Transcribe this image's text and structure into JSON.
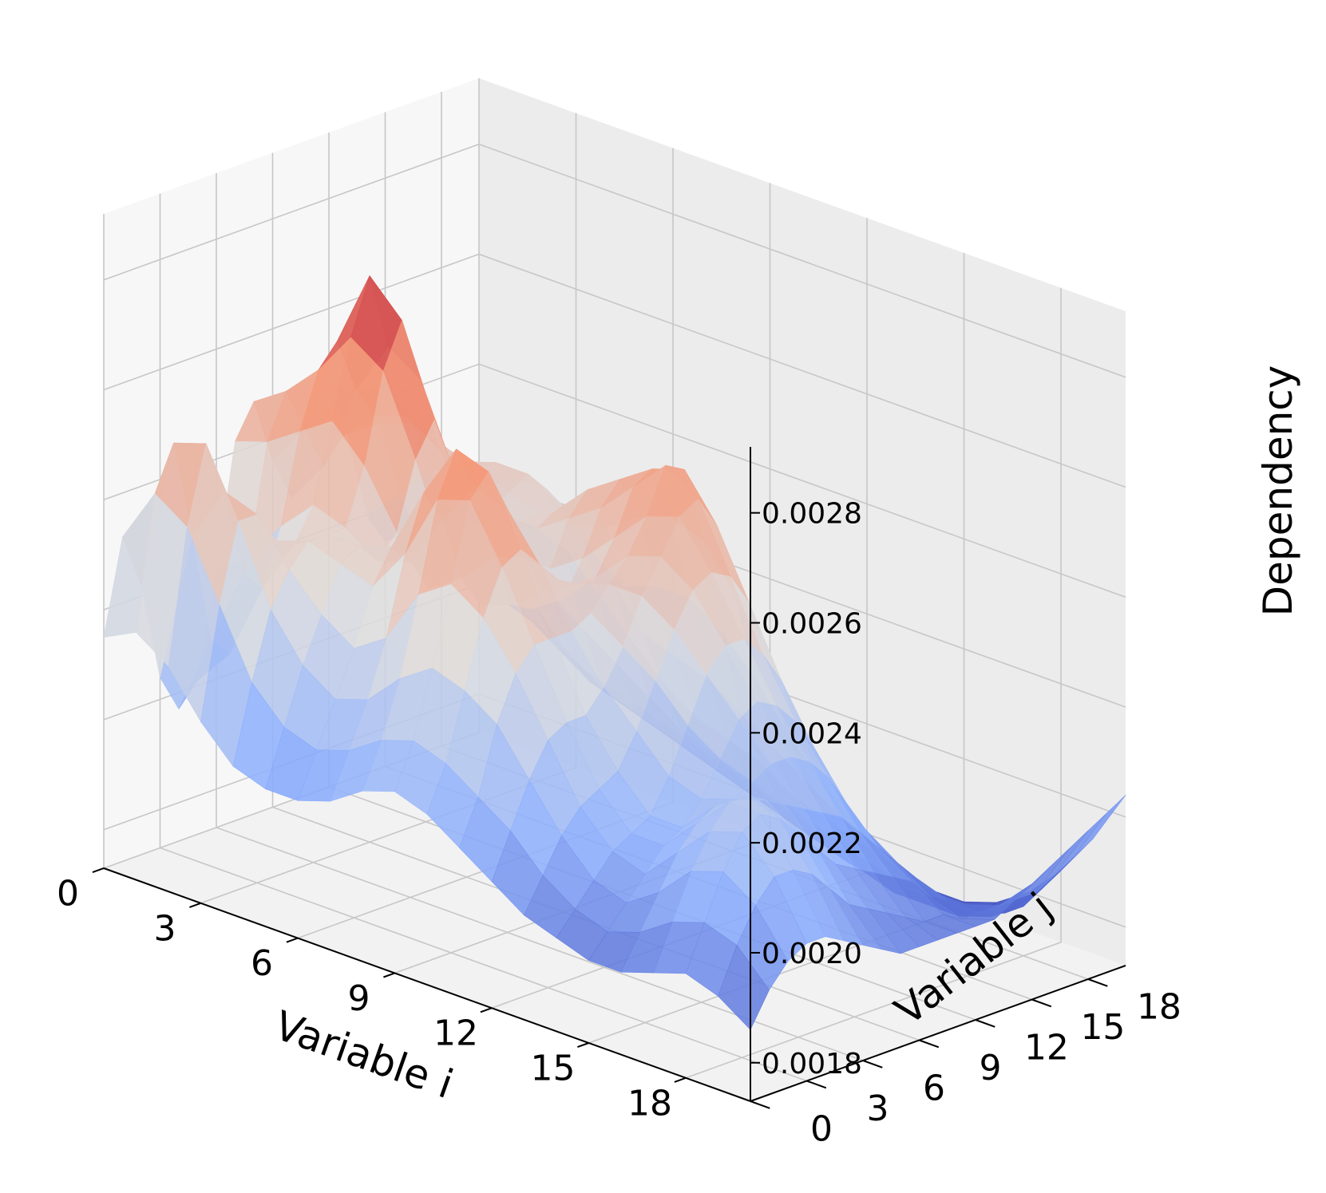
{
  "chart_data": {
    "type": "surface3d",
    "title": "",
    "xlabel": "Variable i",
    "ylabel": "Variable j",
    "zlabel": "Dependency",
    "x_ticks": [
      "0",
      "3",
      "6",
      "9",
      "12",
      "15",
      "18"
    ],
    "y_ticks": [
      "0",
      "3",
      "6",
      "9",
      "12",
      "15",
      "18"
    ],
    "z_ticks": [
      "0.0018",
      "0.0020",
      "0.0022",
      "0.0024",
      "0.0026",
      "0.0028"
    ],
    "xlim": [
      0,
      20
    ],
    "ylim": [
      0,
      20
    ],
    "zlim": [
      0.00173,
      0.00292
    ],
    "colormap": "coolwarm",
    "z_grid": [
      [
        0.00215,
        0.00232,
        0.00222,
        0.00204,
        0.00197,
        0.00201,
        0.0022,
        0.00242,
        0.00248,
        0.00236,
        0.00228,
        0.00234,
        0.00246,
        0.00236,
        0.0022,
        0.00214,
        0.00221,
        0.00225,
        0.00216,
        0.00206,
        0.002
      ],
      [
        0.00218,
        0.00242,
        0.0025,
        0.00232,
        0.00212,
        0.00208,
        0.00224,
        0.00244,
        0.00252,
        0.00244,
        0.00236,
        0.0024,
        0.00248,
        0.0024,
        0.00226,
        0.00218,
        0.00222,
        0.00224,
        0.00214,
        0.00204,
        0.00198
      ],
      [
        0.00214,
        0.00238,
        0.00252,
        0.00242,
        0.00226,
        0.00222,
        0.00232,
        0.00248,
        0.00258,
        0.00262,
        0.00252,
        0.00246,
        0.00248,
        0.00242,
        0.00232,
        0.00224,
        0.00223,
        0.0022,
        0.0021,
        0.002,
        0.00196
      ],
      [
        0.00206,
        0.00226,
        0.0024,
        0.0024,
        0.00234,
        0.00232,
        0.00238,
        0.00252,
        0.00266,
        0.00276,
        0.00262,
        0.00248,
        0.00244,
        0.0024,
        0.00236,
        0.0023,
        0.00224,
        0.00214,
        0.00204,
        0.00196,
        0.00192
      ],
      [
        0.002,
        0.00214,
        0.00226,
        0.00232,
        0.00236,
        0.00236,
        0.00236,
        0.00246,
        0.00262,
        0.0027,
        0.00258,
        0.00244,
        0.00238,
        0.00238,
        0.00238,
        0.00234,
        0.00224,
        0.0021,
        0.00198,
        0.00192,
        0.0019
      ],
      [
        0.00198,
        0.00208,
        0.00218,
        0.00226,
        0.00234,
        0.00236,
        0.00232,
        0.00236,
        0.00248,
        0.00254,
        0.00244,
        0.00236,
        0.00234,
        0.00236,
        0.00238,
        0.00234,
        0.00222,
        0.00206,
        0.00194,
        0.0019,
        0.00188
      ],
      [
        0.00198,
        0.00206,
        0.00214,
        0.00222,
        0.00232,
        0.00238,
        0.00234,
        0.00228,
        0.00232,
        0.00238,
        0.00236,
        0.00234,
        0.00234,
        0.00234,
        0.00234,
        0.0023,
        0.00216,
        0.00202,
        0.00192,
        0.00188,
        0.00186
      ],
      [
        0.002,
        0.00208,
        0.00216,
        0.00226,
        0.0024,
        0.0025,
        0.00244,
        0.00232,
        0.00226,
        0.00228,
        0.00232,
        0.00236,
        0.00238,
        0.00234,
        0.00228,
        0.00222,
        0.0021,
        0.00198,
        0.0019,
        0.00186,
        0.00184
      ],
      [
        0.00204,
        0.00212,
        0.00222,
        0.00236,
        0.00252,
        0.0026,
        0.00252,
        0.00238,
        0.00228,
        0.00226,
        0.00232,
        0.0024,
        0.00244,
        0.00236,
        0.00224,
        0.00214,
        0.00204,
        0.00194,
        0.00188,
        0.00184,
        0.00182
      ],
      [
        0.00206,
        0.00214,
        0.00226,
        0.0024,
        0.00254,
        0.00258,
        0.0025,
        0.0024,
        0.00232,
        0.0023,
        0.00236,
        0.00244,
        0.00248,
        0.0024,
        0.00226,
        0.00212,
        0.002,
        0.00192,
        0.00186,
        0.00182,
        0.0018
      ],
      [
        0.00204,
        0.00212,
        0.00224,
        0.00236,
        0.00244,
        0.00246,
        0.00242,
        0.00238,
        0.00236,
        0.00236,
        0.00242,
        0.0025,
        0.00252,
        0.00242,
        0.00226,
        0.0021,
        0.00198,
        0.0019,
        0.00184,
        0.0018,
        0.00178
      ],
      [
        0.002,
        0.00208,
        0.0022,
        0.00228,
        0.00232,
        0.00232,
        0.00232,
        0.00234,
        0.00238,
        0.00242,
        0.00248,
        0.00256,
        0.00254,
        0.0024,
        0.00222,
        0.00206,
        0.00196,
        0.00188,
        0.00182,
        0.00178,
        0.00176
      ],
      [
        0.00196,
        0.00204,
        0.00212,
        0.00218,
        0.0022,
        0.0022,
        0.00224,
        0.0023,
        0.00238,
        0.00244,
        0.0025,
        0.00252,
        0.00246,
        0.00232,
        0.00216,
        0.00202,
        0.00192,
        0.00186,
        0.0018,
        0.00176,
        0.00175
      ],
      [
        0.00192,
        0.00198,
        0.00204,
        0.00208,
        0.0021,
        0.00212,
        0.00218,
        0.00226,
        0.00234,
        0.0024,
        0.00242,
        0.0024,
        0.00234,
        0.00222,
        0.00208,
        0.00198,
        0.0019,
        0.00184,
        0.00178,
        0.00175,
        0.00174
      ],
      [
        0.0019,
        0.00194,
        0.00198,
        0.00202,
        0.00204,
        0.00206,
        0.00212,
        0.0022,
        0.00228,
        0.00232,
        0.00232,
        0.00228,
        0.00222,
        0.00212,
        0.00202,
        0.00194,
        0.00188,
        0.00182,
        0.00176,
        0.00174,
        0.00174
      ],
      [
        0.00188,
        0.00192,
        0.00196,
        0.002,
        0.00204,
        0.00206,
        0.0021,
        0.00216,
        0.00222,
        0.00224,
        0.00222,
        0.00218,
        0.00212,
        0.00204,
        0.00196,
        0.0019,
        0.00186,
        0.0018,
        0.00176,
        0.00174,
        0.00174
      ],
      [
        0.00188,
        0.00194,
        0.002,
        0.00206,
        0.0021,
        0.00212,
        0.00212,
        0.00214,
        0.00216,
        0.00216,
        0.00214,
        0.0021,
        0.00204,
        0.00198,
        0.00192,
        0.00188,
        0.00184,
        0.0018,
        0.00176,
        0.00175,
        0.00176
      ],
      [
        0.0019,
        0.00198,
        0.00206,
        0.00212,
        0.00216,
        0.00216,
        0.00214,
        0.00212,
        0.0021,
        0.00208,
        0.00206,
        0.00202,
        0.00198,
        0.00194,
        0.0019,
        0.00186,
        0.00183,
        0.0018,
        0.00178,
        0.00178,
        0.0018
      ],
      [
        0.00192,
        0.002,
        0.00208,
        0.00214,
        0.00216,
        0.00214,
        0.0021,
        0.00206,
        0.00202,
        0.002,
        0.00198,
        0.00196,
        0.00194,
        0.0019,
        0.00188,
        0.00186,
        0.00184,
        0.00182,
        0.00182,
        0.00184,
        0.00186
      ],
      [
        0.0019,
        0.00198,
        0.00204,
        0.00208,
        0.00208,
        0.00206,
        0.00202,
        0.00198,
        0.00196,
        0.00194,
        0.00192,
        0.0019,
        0.0019,
        0.00188,
        0.00188,
        0.00188,
        0.00188,
        0.00188,
        0.0019,
        0.00192,
        0.00194
      ],
      [
        0.00186,
        0.00192,
        0.00196,
        0.00198,
        0.00198,
        0.00196,
        0.00194,
        0.00192,
        0.0019,
        0.0019,
        0.0019,
        0.0019,
        0.0019,
        0.0019,
        0.00192,
        0.00194,
        0.00196,
        0.00198,
        0.002,
        0.00202,
        0.00204
      ]
    ]
  }
}
